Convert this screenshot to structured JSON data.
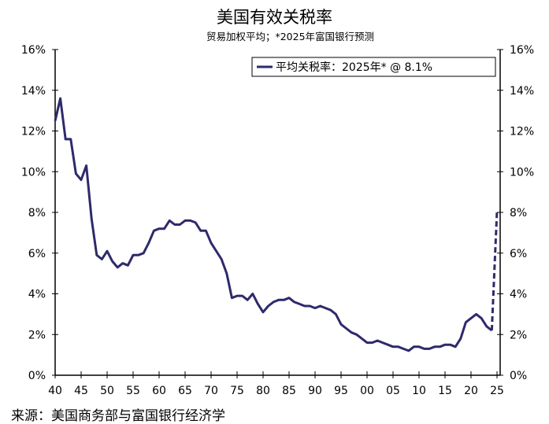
{
  "chart_data": {
    "type": "line",
    "title": "美国有效关税率",
    "subtitle": "贸易加权平均；*2025年富国银行预测",
    "source": "来源：美国商务部与富国银行经济学",
    "xlabel": "",
    "ylabel": "",
    "xlim": [
      1940,
      2025
    ],
    "ylim": [
      0,
      16
    ],
    "y_ticks": [
      "0%",
      "2%",
      "4%",
      "6%",
      "8%",
      "10%",
      "12%",
      "14%",
      "16%"
    ],
    "x_ticks": [
      "40",
      "45",
      "50",
      "55",
      "60",
      "65",
      "70",
      "75",
      "80",
      "85",
      "90",
      "95",
      "00",
      "05",
      "10",
      "15",
      "20",
      "25"
    ],
    "grid": false,
    "legend_position": "top-right",
    "line_color": "#2e2a6b",
    "series": [
      {
        "name": "平均关税率：2025年* @ 8.1%",
        "x": [
          1940,
          1941,
          1942,
          1943,
          1944,
          1945,
          1946,
          1947,
          1948,
          1949,
          1950,
          1951,
          1952,
          1953,
          1954,
          1955,
          1956,
          1957,
          1958,
          1959,
          1960,
          1961,
          1962,
          1963,
          1964,
          1965,
          1966,
          1967,
          1968,
          1969,
          1970,
          1971,
          1972,
          1973,
          1974,
          1975,
          1976,
          1977,
          1978,
          1979,
          1980,
          1981,
          1982,
          1983,
          1984,
          1985,
          1986,
          1987,
          1988,
          1989,
          1990,
          1991,
          1992,
          1993,
          1994,
          1995,
          1996,
          1997,
          1998,
          1999,
          2000,
          2001,
          2002,
          2003,
          2004,
          2005,
          2006,
          2007,
          2008,
          2009,
          2010,
          2011,
          2012,
          2013,
          2014,
          2015,
          2016,
          2017,
          2018,
          2019,
          2020,
          2021,
          2022,
          2023,
          2024
        ],
        "values": [
          12.5,
          13.6,
          11.6,
          11.6,
          9.9,
          9.6,
          10.3,
          7.7,
          5.9,
          5.7,
          6.1,
          5.6,
          5.3,
          5.5,
          5.4,
          5.9,
          5.9,
          6.0,
          6.5,
          7.1,
          7.2,
          7.2,
          7.6,
          7.4,
          7.4,
          7.6,
          7.6,
          7.5,
          7.1,
          7.1,
          6.5,
          6.1,
          5.7,
          5.0,
          3.8,
          3.9,
          3.9,
          3.7,
          4.0,
          3.5,
          3.1,
          3.4,
          3.6,
          3.7,
          3.7,
          3.8,
          3.6,
          3.5,
          3.4,
          3.4,
          3.3,
          3.4,
          3.3,
          3.2,
          3.0,
          2.5,
          2.3,
          2.1,
          2.0,
          1.8,
          1.6,
          1.6,
          1.7,
          1.6,
          1.5,
          1.4,
          1.4,
          1.3,
          1.2,
          1.4,
          1.4,
          1.3,
          1.3,
          1.4,
          1.4,
          1.5,
          1.5,
          1.4,
          1.8,
          2.6,
          2.8,
          3.0,
          2.8,
          2.4,
          2.2
        ],
        "forecast": {
          "x": [
            2024,
            2025
          ],
          "values": [
            2.2,
            8.1
          ],
          "style": "dashed"
        }
      }
    ]
  }
}
